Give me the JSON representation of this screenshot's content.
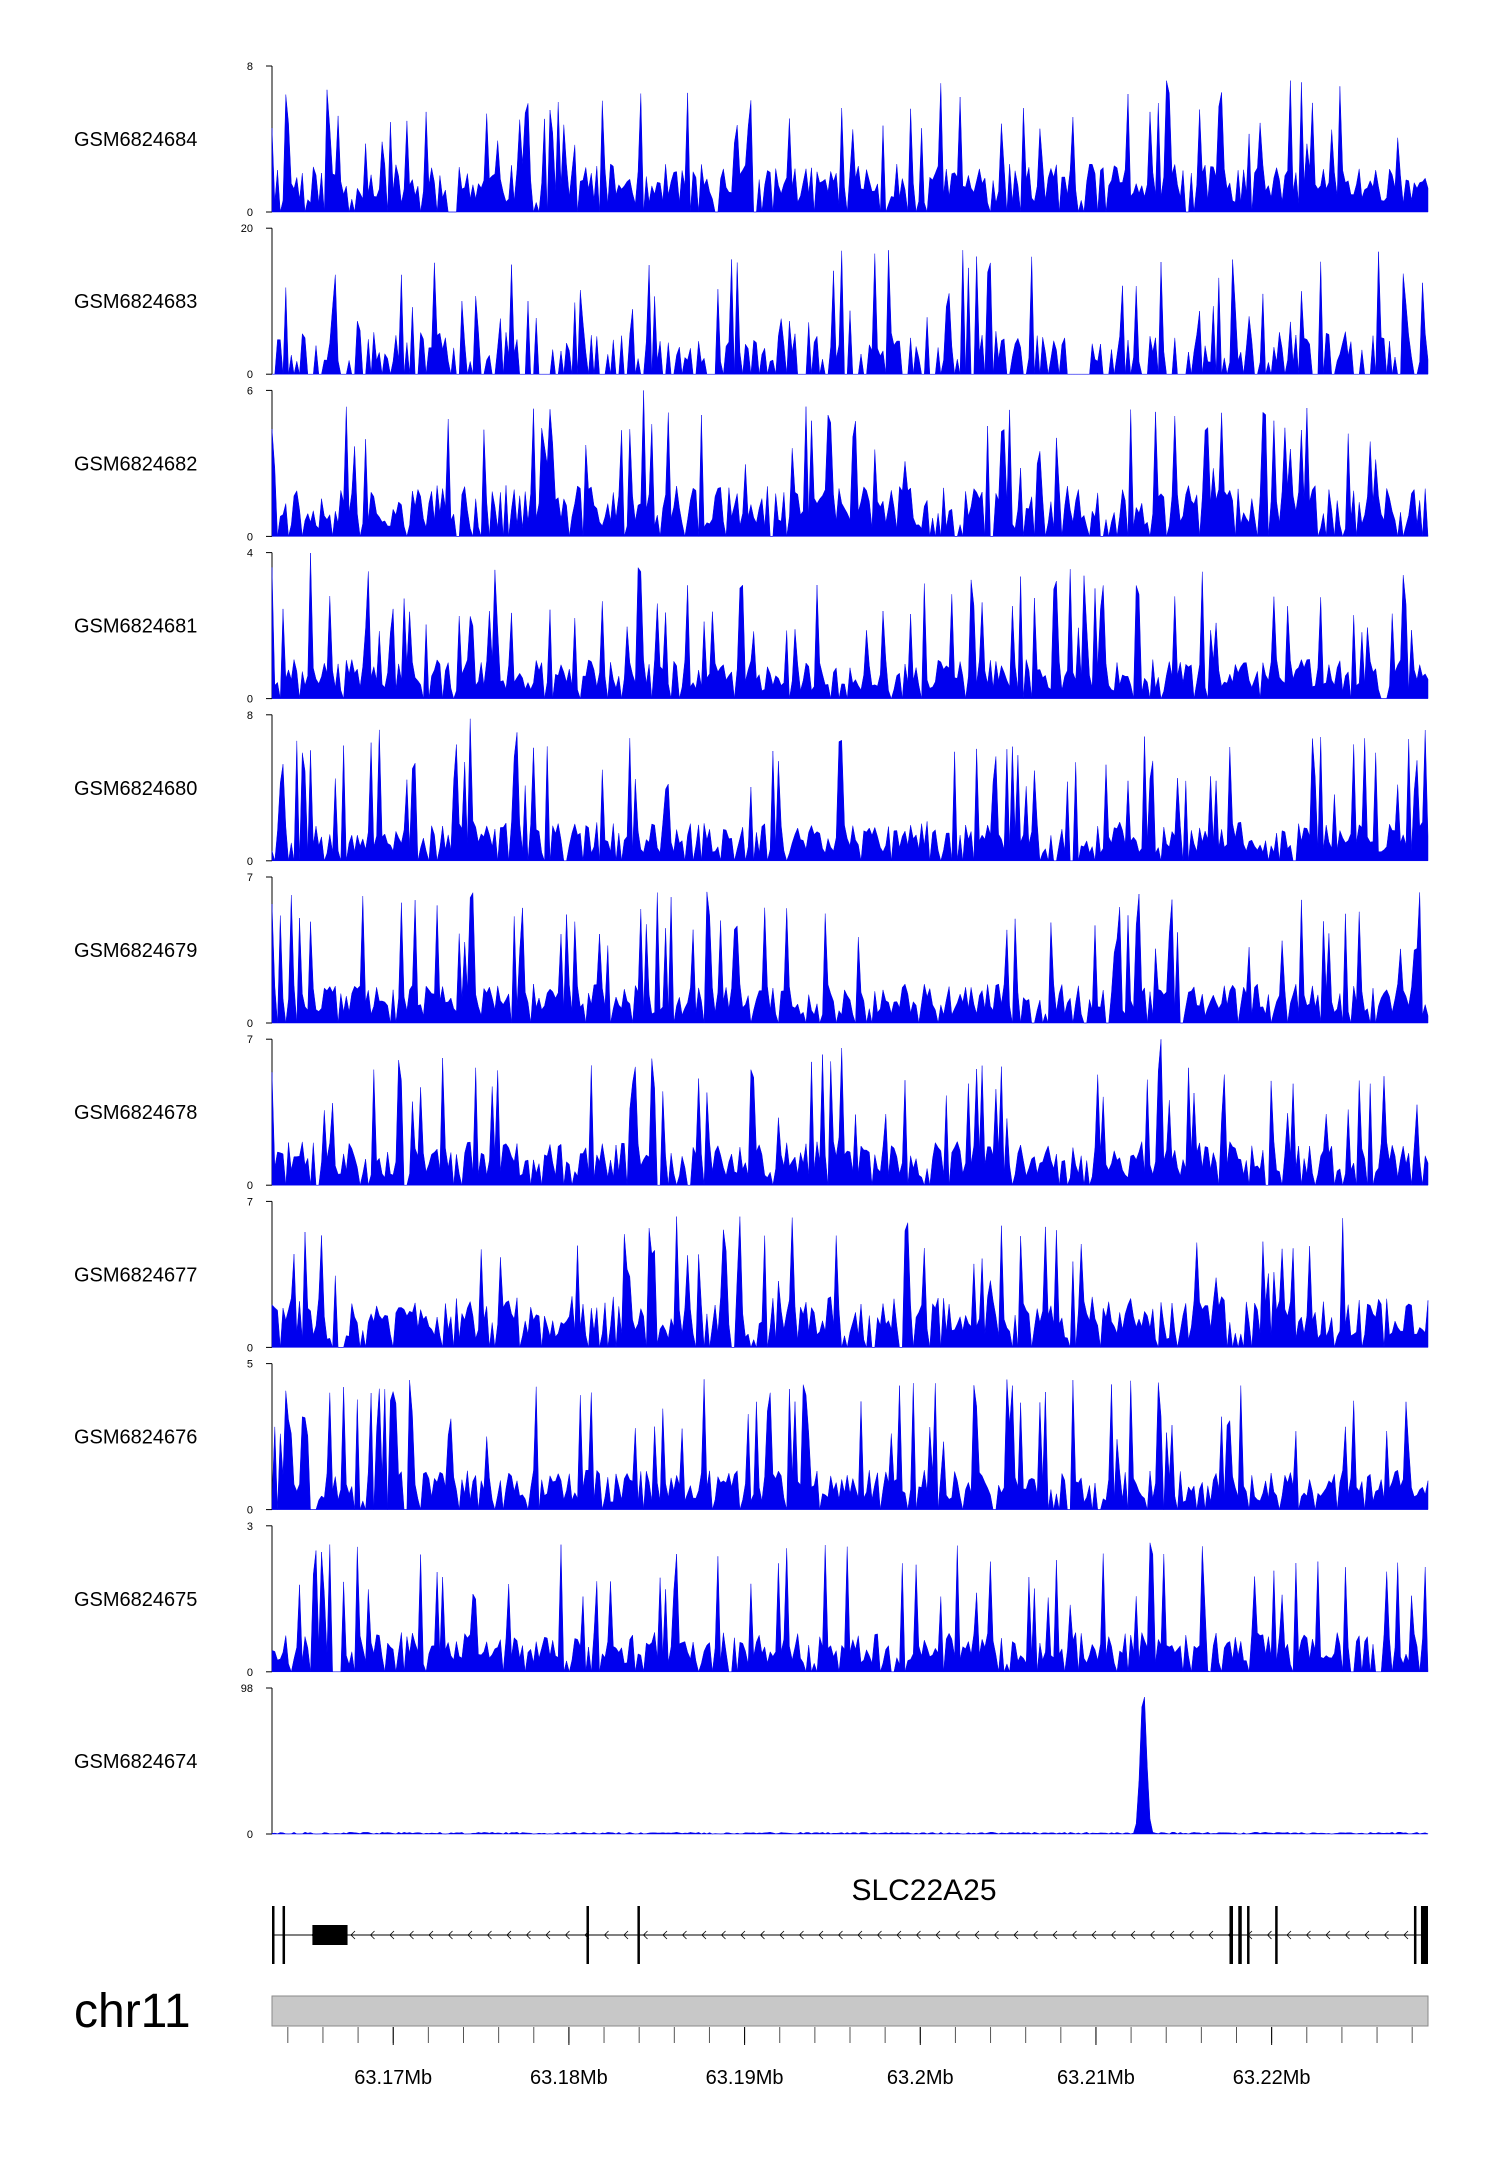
{
  "chart_data": {
    "type": "area",
    "title": "",
    "xlabel": "",
    "ylabel": "",
    "tracks": [
      {
        "name": "GSM6824684",
        "ymax": 8,
        "ymin": 0,
        "seed": 11,
        "mean": 0.28,
        "spike": 0.85,
        "peaks": []
      },
      {
        "name": "GSM6824683",
        "ymax": 20,
        "ymin": 0,
        "seed": 23,
        "mean": 0.12,
        "spike": 0.55,
        "sparse": true,
        "peaks": []
      },
      {
        "name": "GSM6824682",
        "ymax": 6,
        "ymin": 0,
        "seed": 37,
        "mean": 0.3,
        "spike": 0.75,
        "peaks": [
          {
            "x": 63.18425,
            "y": 6
          }
        ]
      },
      {
        "name": "GSM6824681",
        "ymax": 4,
        "ymin": 0,
        "seed": 41,
        "mean": 0.22,
        "spike": 0.8,
        "peaks": [
          {
            "x": 63.1653,
            "y": 4
          },
          {
            "x": 63.2124,
            "y": 3.4
          }
        ]
      },
      {
        "name": "GSM6824680",
        "ymax": 8,
        "ymin": 0,
        "seed": 53,
        "mean": 0.22,
        "spike": 0.75,
        "peaks": [
          {
            "x": 63.1744,
            "y": 8
          },
          {
            "x": 63.2282,
            "y": 6.2
          }
        ]
      },
      {
        "name": "GSM6824679",
        "ymax": 7,
        "ymin": 0,
        "seed": 61,
        "mean": 0.22,
        "spike": 0.8,
        "peaks": [
          {
            "x": 63.1773,
            "y": 6.9
          },
          {
            "x": 63.1895,
            "y": 7
          }
        ]
      },
      {
        "name": "GSM6824678",
        "ymax": 7,
        "ymin": 0,
        "seed": 71,
        "mean": 0.25,
        "spike": 0.8,
        "peaks": [
          {
            "x": 63.1955,
            "y": 7
          },
          {
            "x": 63.2137,
            "y": 7
          }
        ]
      },
      {
        "name": "GSM6824677",
        "ymax": 7,
        "ymin": 0,
        "seed": 83,
        "mean": 0.3,
        "spike": 0.6,
        "peaks": [
          {
            "x": 63.1848,
            "y": 7
          },
          {
            "x": 63.2071,
            "y": 6
          }
        ]
      },
      {
        "name": "GSM6824676",
        "ymax": 5,
        "ymin": 0,
        "seed": 97,
        "mean": 0.22,
        "spike": 0.75,
        "peaks": [
          {
            "x": 63.1914,
            "y": 5
          },
          {
            "x": 63.2277,
            "y": 4.5
          }
        ]
      },
      {
        "name": "GSM6824675",
        "ymax": 3,
        "ymin": 0,
        "seed": 101,
        "mean": 0.22,
        "spike": 0.75,
        "peaks": [
          {
            "x": 63.1656,
            "y": 2.5
          },
          {
            "x": 63.2161,
            "y": 3
          }
        ]
      },
      {
        "name": "GSM6824674",
        "ymax": 98,
        "ymin": 0,
        "seed": 113,
        "flat": true,
        "peaks": [
          {
            "x": 63.2127,
            "y": 98,
            "width": 0.00025
          }
        ]
      }
    ],
    "gene": {
      "name": "SLC22A25",
      "strand": "-",
      "start": 63.1631,
      "end": 63.2289,
      "exons": [
        {
          "start": 63.1631,
          "end": 63.16315
        },
        {
          "start": 63.1637,
          "end": 63.16375
        },
        {
          "start": 63.1654,
          "end": 63.1674
        },
        {
          "start": 63.181,
          "end": 63.1811
        },
        {
          "start": 63.1839,
          "end": 63.184
        },
        {
          "start": 63.2176,
          "end": 63.2178
        },
        {
          "start": 63.2181,
          "end": 63.2183
        },
        {
          "start": 63.2186,
          "end": 63.2187
        },
        {
          "start": 63.2202,
          "end": 63.2203
        },
        {
          "start": 63.2281,
          "end": 63.2282
        },
        {
          "start": 63.2285,
          "end": 63.2289
        }
      ]
    },
    "chromosome": "chr11",
    "xlim": [
      63.1631,
      63.2289
    ],
    "x_ticks": [
      {
        "value": 63.17,
        "label": "63.17Mb"
      },
      {
        "value": 63.18,
        "label": "63.18Mb"
      },
      {
        "value": 63.19,
        "label": "63.19Mb"
      },
      {
        "value": 63.2,
        "label": "63.2Mb"
      },
      {
        "value": 63.21,
        "label": "63.21Mb"
      },
      {
        "value": 63.22,
        "label": "63.22Mb"
      }
    ],
    "minor_tick_step": 0.002,
    "colors": {
      "signal": "#0000ee",
      "ideogram": "#c8c8c8",
      "axis": "#000000"
    }
  }
}
